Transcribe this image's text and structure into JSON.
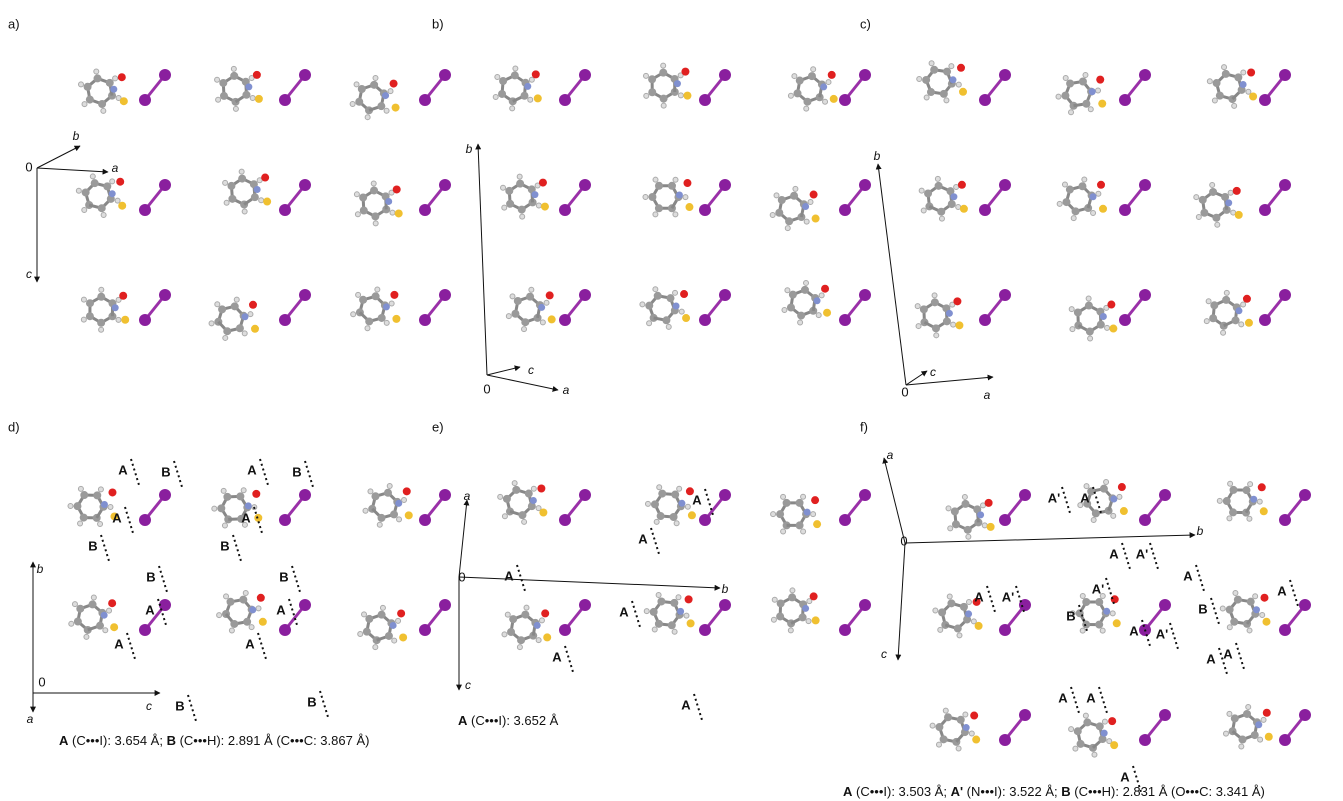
{
  "panels": [
    {
      "label": "a)",
      "axes": [
        "0",
        "b",
        "a",
        "c"
      ],
      "contact_labels": []
    },
    {
      "label": "b)",
      "axes": [
        "0",
        "b",
        "c",
        "a"
      ],
      "contact_labels": []
    },
    {
      "label": "c)",
      "axes": [
        "0",
        "b",
        "c",
        "a"
      ],
      "contact_labels": []
    },
    {
      "label": "d)",
      "axes": [
        "0",
        "b",
        "c",
        "a"
      ],
      "contact_labels": [
        "A",
        "B",
        "A",
        "B",
        "A",
        "B",
        "A",
        "B",
        "B",
        "B",
        "A",
        "A",
        "A",
        "A",
        "B",
        "B"
      ],
      "caption": [
        {
          "text": "A",
          "bold": true
        },
        {
          "text": " (C•••I): 3.654 Å; "
        },
        {
          "text": "B",
          "bold": true
        },
        {
          "text": " (C•••H): 2.891 Å (C•••C: 3.867 Å)"
        }
      ]
    },
    {
      "label": "e)",
      "axes": [
        "0",
        "a",
        "b",
        "c"
      ],
      "contact_labels": [
        "A",
        "A",
        "A",
        "A",
        "A",
        "A"
      ],
      "caption": [
        {
          "text": "A",
          "bold": true
        },
        {
          "text": " (C•••I): 3.652 Å"
        }
      ]
    },
    {
      "label": "f)",
      "axes": [
        "0",
        "a",
        "b",
        "c"
      ],
      "contact_labels": [
        "A'",
        "A",
        "A",
        "A'",
        "A",
        "A",
        "A",
        "A'",
        "A'",
        "B",
        "B",
        "A",
        "A'",
        "A",
        "A",
        "A",
        "A",
        "A"
      ],
      "caption": [
        {
          "text": "A",
          "bold": true
        },
        {
          "text": " (C•••I): 3.503 Å; "
        },
        {
          "text": "A'",
          "bold": true
        },
        {
          "text": " (N•••I): 3.522 Å; "
        },
        {
          "text": "B",
          "bold": true
        },
        {
          "text": " (C•••H): 2.831 Å (O•••C: 3.341 Å)"
        }
      ]
    }
  ]
}
